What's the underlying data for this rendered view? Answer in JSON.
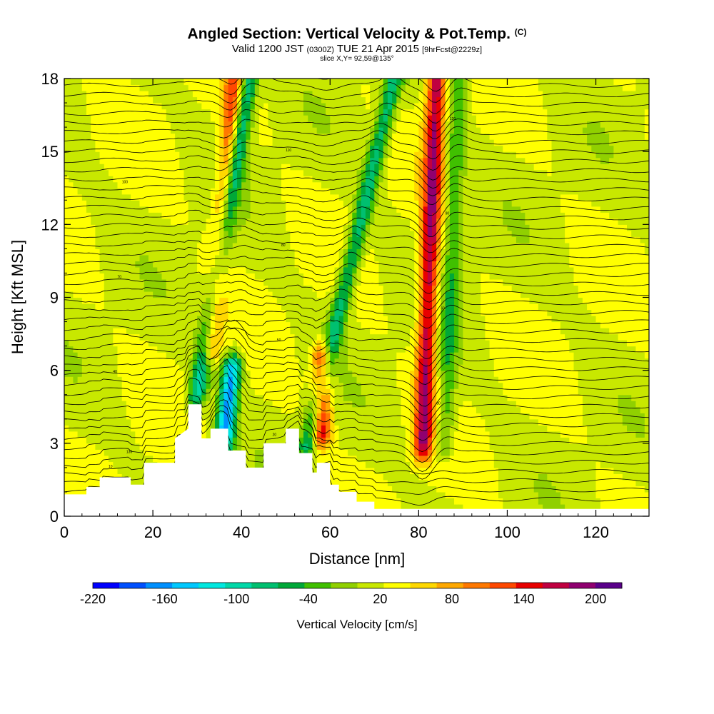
{
  "header": {
    "title": "Angled Section: Vertical Velocity & Pot.Temp.",
    "title_unit": "(C)",
    "valid_a": "Valid 1200 JST",
    "valid_utc": "(0300Z)",
    "valid_b": "TUE 21 Apr 2015",
    "forecast": "[9hrFcst@2229z]",
    "slice": "slice X,Y= 92,59@135°"
  },
  "chart_data": {
    "type": "heatmap",
    "xlabel": "Distance [nm]",
    "ylabel": "Height [Kft MSL]",
    "xlim": [
      0,
      132
    ],
    "ylim": [
      0,
      18
    ],
    "x_ticks": [
      "0",
      "20",
      "40",
      "60",
      "80",
      "100",
      "120"
    ],
    "y_ticks": [
      "0",
      "3",
      "6",
      "9",
      "12",
      "15",
      "18"
    ],
    "colorbar": {
      "title": "Vertical Velocity [cm/s]",
      "tick_labels": [
        "-220",
        "-160",
        "-100",
        "-40",
        "20",
        "80",
        "140",
        "200"
      ],
      "colors": [
        "#0000ff",
        "#0050ff",
        "#0090ff",
        "#00c8ff",
        "#00e8e0",
        "#00d8a8",
        "#00c070",
        "#00a838",
        "#40c000",
        "#90d000",
        "#c8e800",
        "#ffff00",
        "#ffd800",
        "#ffa800",
        "#ff7800",
        "#ff4800",
        "#e80000",
        "#c00040",
        "#900070",
        "#5a008a"
      ]
    },
    "velocity_features": [
      {
        "x": 30,
        "z_bottom": 5,
        "z_top": 18,
        "value": -120,
        "tilt": 0.9
      },
      {
        "x": 33,
        "z_bottom": 7,
        "z_top": 18,
        "value": 110,
        "tilt": 0.5
      },
      {
        "x": 36,
        "z_bottom": 3,
        "z_top": 6,
        "value": -180,
        "tilt": 0.6
      },
      {
        "x": 55,
        "z_bottom": 3,
        "z_top": 18,
        "value": -100,
        "tilt": 1.3
      },
      {
        "x": 58,
        "z_bottom": 3.5,
        "z_top": 6.5,
        "value": 150,
        "tilt": 0.1
      },
      {
        "x": 81,
        "z_bottom": 3,
        "z_top": 18,
        "value": 160,
        "tilt": 0.2
      },
      {
        "x": 86,
        "z_bottom": 3,
        "z_top": 18,
        "value": -60,
        "tilt": 0.2
      }
    ],
    "terrain": [
      [
        0,
        0.9
      ],
      [
        5,
        0.9
      ],
      [
        5,
        1.2
      ],
      [
        8,
        1.2
      ],
      [
        8,
        1.6
      ],
      [
        15,
        1.6
      ],
      [
        15,
        1.3
      ],
      [
        18,
        1.3
      ],
      [
        18,
        2.2
      ],
      [
        25,
        2.2
      ],
      [
        25,
        3.2
      ],
      [
        28,
        3.6
      ],
      [
        28,
        4.6
      ],
      [
        31,
        4.6
      ],
      [
        31,
        3.2
      ],
      [
        33,
        3.2
      ],
      [
        33,
        3.6
      ],
      [
        37,
        3.6
      ],
      [
        37,
        2.7
      ],
      [
        41,
        2.7
      ],
      [
        41,
        2.0
      ],
      [
        45,
        2.0
      ],
      [
        45,
        3.0
      ],
      [
        50,
        3.0
      ],
      [
        50,
        3.6
      ],
      [
        53,
        3.6
      ],
      [
        53,
        2.6
      ],
      [
        56,
        2.6
      ],
      [
        56,
        1.8
      ],
      [
        57,
        1.8
      ],
      [
        57,
        2.2
      ],
      [
        60,
        2.2
      ],
      [
        60,
        1.3
      ],
      [
        62,
        1.3
      ],
      [
        62,
        1.0
      ],
      [
        66,
        1.0
      ],
      [
        66,
        0.6
      ],
      [
        70,
        0.6
      ],
      [
        70,
        0.3
      ],
      [
        132,
        0.3
      ]
    ],
    "isentrope_labels": [
      "10",
      "20",
      "30",
      "40",
      "50",
      "60",
      "70",
      "80",
      "90",
      "100",
      "110",
      "120",
      "130"
    ]
  }
}
